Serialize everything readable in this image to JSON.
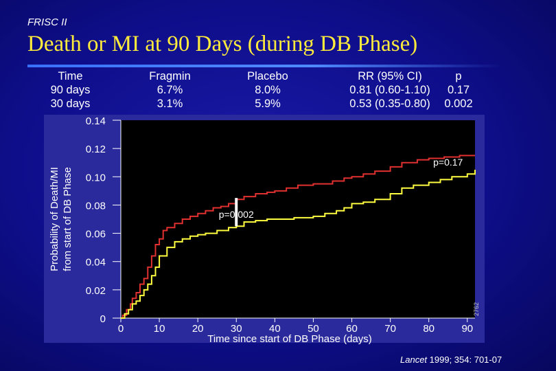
{
  "slide": {
    "study": "FRISC II",
    "title": "Death or MI at 90 Days (during DB Phase)",
    "citation_journal": "Lancet",
    "citation_rest": " 1999; 354: 701-07"
  },
  "table": {
    "headers": [
      "Time",
      "Fragmin",
      "Placebo",
      "RR (95% CI)",
      "p"
    ],
    "rows": [
      [
        "90 days",
        "6.7%",
        "8.0%",
        "0.81 (0.60-1.10)",
        "0.17"
      ],
      [
        "30 days",
        "3.1%",
        "5.9%",
        "0.53 (0.35-0.80)",
        "0.002"
      ]
    ]
  },
  "colors": {
    "title": "#ffeb3b",
    "placebo_line": "#e03030",
    "fragmin_line": "#ffff40",
    "plot_bg": "#000000"
  },
  "chart_data": {
    "type": "line",
    "xlabel": "Time since start of DB Phase (days)",
    "ylabel_lines": [
      "Probability of Death/MI",
      "from start of DB Phase"
    ],
    "xlim": [
      0,
      92
    ],
    "ylim": [
      0,
      0.14
    ],
    "x_ticks": [
      0,
      10,
      20,
      30,
      40,
      50,
      60,
      70,
      80,
      90
    ],
    "x_tick_labels": [
      "0",
      "10",
      "20",
      "30",
      "40",
      "50",
      "60",
      "70",
      "80",
      "90"
    ],
    "y_ticks": [
      0,
      0.02,
      0.04,
      0.06,
      0.08,
      0.1,
      0.12,
      0.14
    ],
    "y_tick_labels": [
      "0",
      "0.02",
      "0.04",
      "0.06",
      "0.08",
      "0.10",
      "0.12",
      "0.14"
    ],
    "grid": false,
    "series": [
      {
        "color_key": "placebo_line",
        "step": true,
        "points": [
          [
            0,
            0
          ],
          [
            0.5,
            0.002
          ],
          [
            1.5,
            0.006
          ],
          [
            2.5,
            0.01
          ],
          [
            3,
            0.014
          ],
          [
            4,
            0.018
          ],
          [
            5,
            0.024
          ],
          [
            6,
            0.028
          ],
          [
            7,
            0.036
          ],
          [
            8,
            0.044
          ],
          [
            9,
            0.052
          ],
          [
            10,
            0.056
          ],
          [
            11,
            0.062
          ],
          [
            12,
            0.064
          ],
          [
            14,
            0.067
          ],
          [
            16,
            0.07
          ],
          [
            18,
            0.072
          ],
          [
            20,
            0.074
          ],
          [
            22,
            0.076
          ],
          [
            24,
            0.078
          ],
          [
            26,
            0.079
          ],
          [
            28,
            0.081
          ],
          [
            30,
            0.084
          ],
          [
            32,
            0.086
          ],
          [
            35,
            0.088
          ],
          [
            38,
            0.089
          ],
          [
            40,
            0.09
          ],
          [
            43,
            0.092
          ],
          [
            46,
            0.094
          ],
          [
            50,
            0.095
          ],
          [
            55,
            0.097
          ],
          [
            58,
            0.099
          ],
          [
            60,
            0.1
          ],
          [
            63,
            0.102
          ],
          [
            66,
            0.104
          ],
          [
            70,
            0.107
          ],
          [
            73,
            0.11
          ],
          [
            77,
            0.112
          ],
          [
            80,
            0.113
          ],
          [
            84,
            0.114
          ],
          [
            88,
            0.115
          ],
          [
            92,
            0.115
          ]
        ]
      },
      {
        "color_key": "fragmin_line",
        "step": true,
        "points": [
          [
            0,
            0
          ],
          [
            1,
            0.003
          ],
          [
            2,
            0.006
          ],
          [
            3,
            0.01
          ],
          [
            4,
            0.012
          ],
          [
            5,
            0.016
          ],
          [
            6,
            0.02
          ],
          [
            7,
            0.024
          ],
          [
            8,
            0.03
          ],
          [
            9,
            0.036
          ],
          [
            10,
            0.044
          ],
          [
            12,
            0.05
          ],
          [
            14,
            0.054
          ],
          [
            16,
            0.056
          ],
          [
            18,
            0.058
          ],
          [
            20,
            0.059
          ],
          [
            22,
            0.06
          ],
          [
            25,
            0.062
          ],
          [
            28,
            0.064
          ],
          [
            30,
            0.065
          ],
          [
            32,
            0.068
          ],
          [
            35,
            0.069
          ],
          [
            38,
            0.07
          ],
          [
            40,
            0.07
          ],
          [
            45,
            0.071
          ],
          [
            50,
            0.072
          ],
          [
            53,
            0.074
          ],
          [
            56,
            0.076
          ],
          [
            58,
            0.078
          ],
          [
            60,
            0.081
          ],
          [
            63,
            0.082
          ],
          [
            66,
            0.084
          ],
          [
            70,
            0.088
          ],
          [
            73,
            0.092
          ],
          [
            76,
            0.094
          ],
          [
            80,
            0.096
          ],
          [
            83,
            0.098
          ],
          [
            86,
            0.1
          ],
          [
            90,
            0.102
          ],
          [
            92,
            0.105
          ]
        ]
      }
    ],
    "annotations": [
      {
        "text": "p=0.17",
        "x": 85,
        "y": 0.108
      },
      {
        "text": "p=0.002",
        "x": 30,
        "y": 0.071
      }
    ],
    "bracket_30_days": {
      "x": 30,
      "y_high": 0.085,
      "y_low": 0.065
    },
    "figure_id": "2762"
  }
}
